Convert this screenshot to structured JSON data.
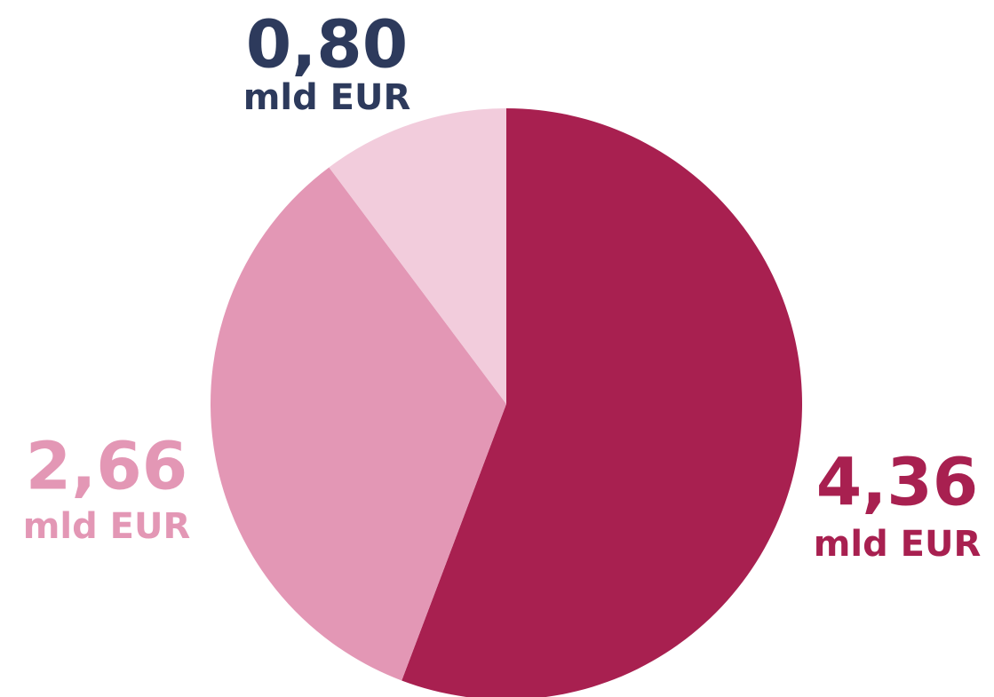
{
  "chart_data": {
    "type": "pie",
    "categories": [
      null,
      null,
      null
    ],
    "values": [
      4.36,
      2.66,
      0.8
    ],
    "value_labels": [
      "4,36",
      "2,66",
      "0,80"
    ],
    "unit": "mld EUR",
    "colors": [
      "#a82050",
      "#e397b5",
      "#f2ccdc"
    ],
    "label_colors": [
      "#a82050",
      "#e397b5",
      "#2d3a5c"
    ],
    "start_angle": 0,
    "direction": "clockwise"
  }
}
